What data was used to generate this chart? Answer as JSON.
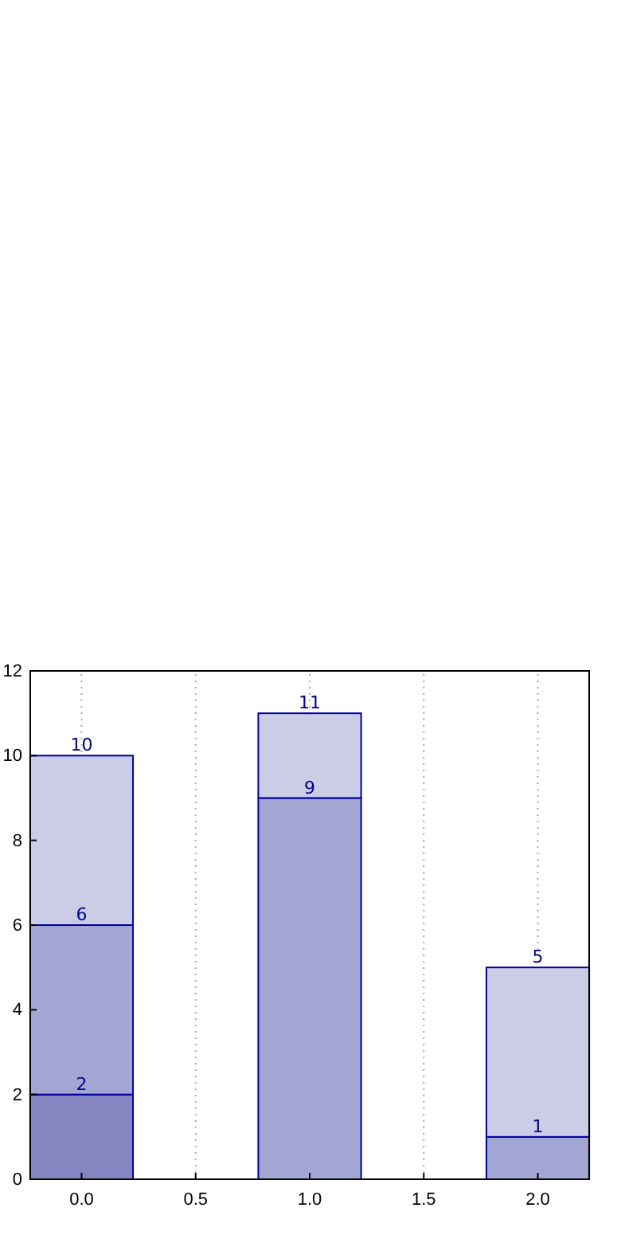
{
  "chart_data": {
    "type": "bar",
    "stacked": true,
    "x": [
      0,
      1,
      2
    ],
    "series": [
      {
        "color": "#8585c2",
        "values": [
          2,
          null,
          null
        ]
      },
      {
        "color": "#a3a5d3",
        "values": [
          4,
          9,
          1
        ]
      },
      {
        "color": "#cbcce5",
        "values": [
          4,
          2,
          4
        ]
      }
    ],
    "totals": [
      "10",
      "11",
      "5"
    ],
    "annotations": [
      {
        "text": "2",
        "x": 0,
        "y": 2
      },
      {
        "text": "6",
        "x": 0,
        "y": 6
      },
      {
        "text": "9",
        "x": 1,
        "y": 9
      },
      {
        "text": "1",
        "x": 2,
        "y": 1
      }
    ],
    "xlim": [
      -0.225,
      2.225
    ],
    "xticks": [
      {
        "value": 0,
        "label": "0.0"
      },
      {
        "value": 0.5,
        "label": "0.5"
      },
      {
        "value": 1,
        "label": "1.0"
      },
      {
        "value": 1.5,
        "label": "1.5"
      },
      {
        "value": 2,
        "label": "2.0"
      }
    ],
    "ylim": [
      0,
      12
    ],
    "yticks": [
      0,
      2,
      4,
      6,
      8,
      10,
      12
    ],
    "grid": "x"
  }
}
